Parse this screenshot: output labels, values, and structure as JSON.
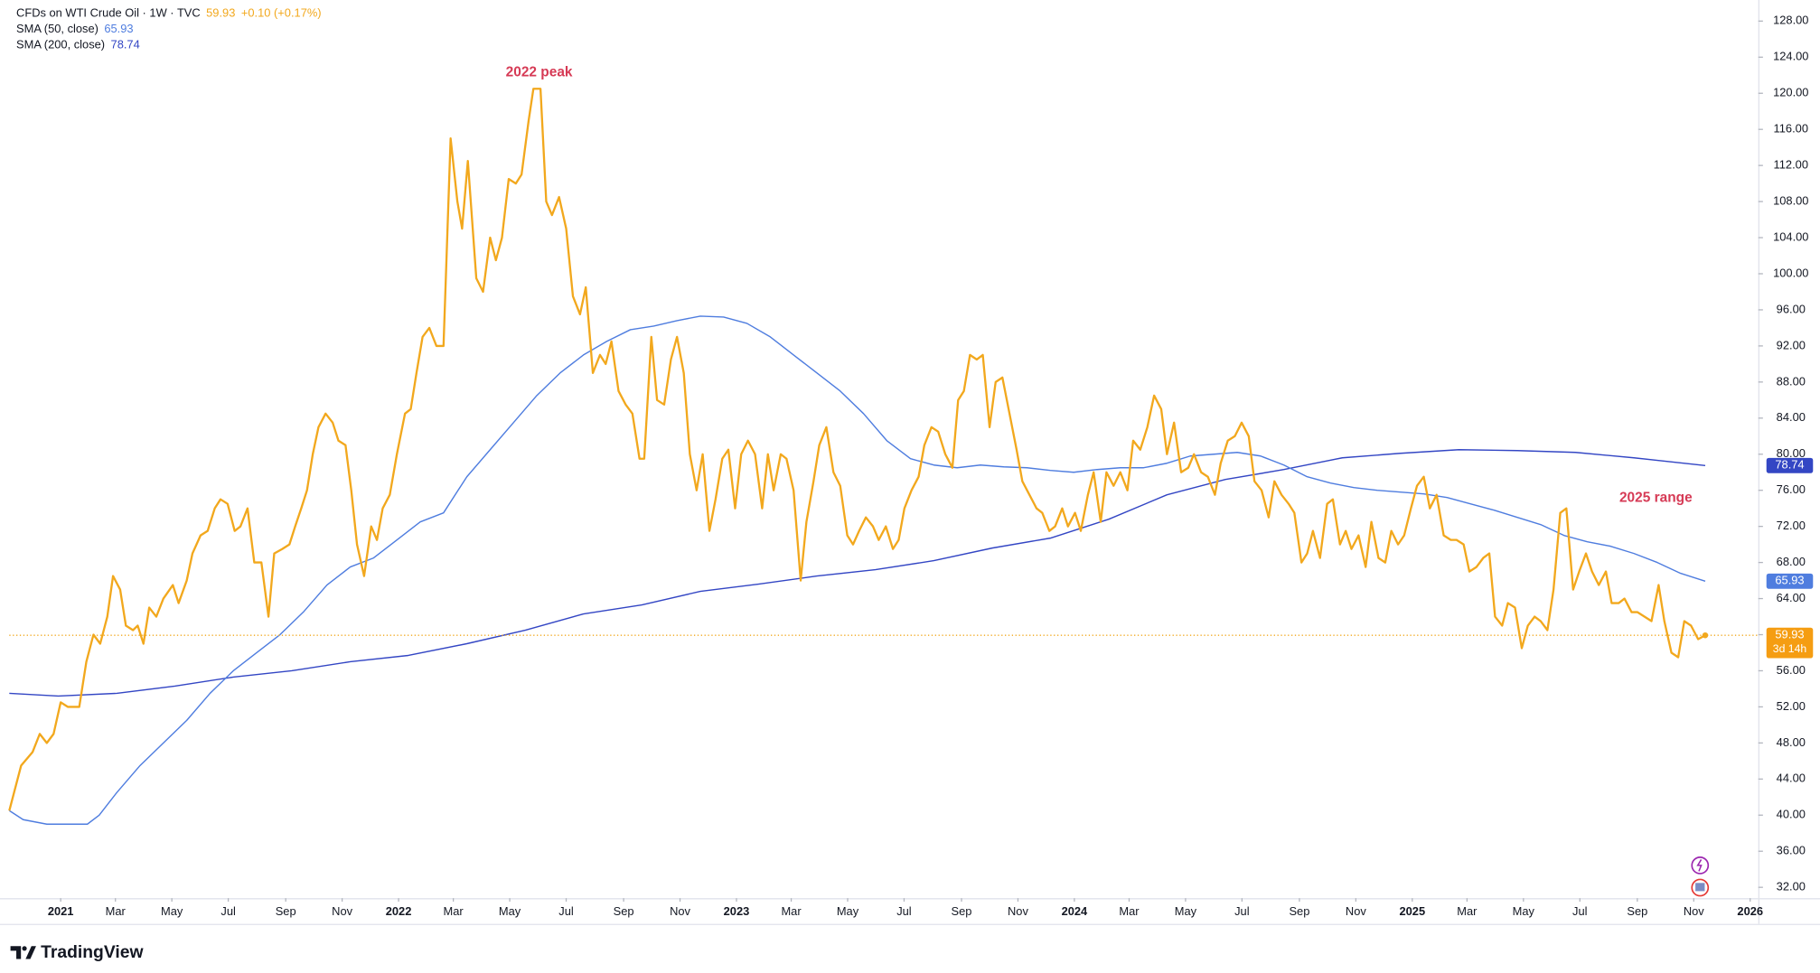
{
  "chart_data": {
    "type": "line",
    "change_label": "+0.10 (+0.17%)",
    "countdown": "3d 14h",
    "annotations": [
      "2022 peak",
      "2025 range"
    ],
    "grid": false,
    "xlim": [
      2020.848,
      2026.024
    ],
    "ylim": [
      30.8,
      129.3
    ],
    "xticks": [
      2021,
      {
        "value": 2021.162,
        "label": "Mar"
      },
      {
        "value": 2021.329,
        "label": "May"
      },
      {
        "value": 2021.496,
        "label": "Jul"
      },
      {
        "value": 2021.666,
        "label": "Sep"
      },
      {
        "value": 2021.833,
        "label": "Nov"
      },
      2022,
      {
        "value": 2022.162,
        "label": "Mar"
      },
      {
        "value": 2022.329,
        "label": "May"
      },
      {
        "value": 2022.496,
        "label": "Jul"
      },
      {
        "value": 2022.666,
        "label": "Sep"
      },
      {
        "value": 2022.833,
        "label": "Nov"
      },
      2023,
      {
        "value": 2023.162,
        "label": "Mar"
      },
      {
        "value": 2023.329,
        "label": "May"
      },
      {
        "value": 2023.496,
        "label": "Jul"
      },
      {
        "value": 2023.666,
        "label": "Sep"
      },
      {
        "value": 2023.833,
        "label": "Nov"
      },
      2024,
      {
        "value": 2024.162,
        "label": "Mar"
      },
      {
        "value": 2024.329,
        "label": "May"
      },
      {
        "value": 2024.496,
        "label": "Jul"
      },
      {
        "value": 2024.666,
        "label": "Sep"
      },
      {
        "value": 2024.833,
        "label": "Nov"
      },
      2025,
      {
        "value": 2025.162,
        "label": "Mar"
      },
      {
        "value": 2025.329,
        "label": "May"
      },
      {
        "value": 2025.496,
        "label": "Jul"
      },
      {
        "value": 2025.666,
        "label": "Sep"
      },
      {
        "value": 2025.833,
        "label": "Nov"
      },
      2026
    ],
    "yticks": [
      {
        "value": 32,
        "label": "32.00"
      },
      {
        "value": 36,
        "label": "36.00"
      },
      {
        "value": 40,
        "label": "40.00"
      },
      {
        "value": 44,
        "label": "44.00"
      },
      {
        "value": 48,
        "label": "48.00"
      },
      {
        "value": 52,
        "label": "52.00"
      },
      {
        "value": 56,
        "label": "56.00"
      },
      {
        "value": 60,
        "label": "60.00"
      },
      {
        "value": 64,
        "label": "64.00"
      },
      {
        "value": 68,
        "label": "68.00"
      },
      {
        "value": 72,
        "label": "72.00"
      },
      {
        "value": 76,
        "label": "76.00"
      },
      {
        "value": 80,
        "label": "80.00"
      },
      {
        "value": 84,
        "label": "84.00"
      },
      {
        "value": 88,
        "label": "88.00"
      },
      {
        "value": 92,
        "label": "92.00"
      },
      {
        "value": 96,
        "label": "96.00"
      },
      {
        "value": 100,
        "label": "100.00"
      },
      {
        "value": 104,
        "label": "104.00"
      },
      {
        "value": 108,
        "label": "108.00"
      },
      {
        "value": 112,
        "label": "112.00"
      },
      {
        "value": 116,
        "label": "116.00"
      },
      {
        "value": 120,
        "label": "120.00"
      },
      {
        "value": 124,
        "label": "124.00"
      },
      {
        "value": 128,
        "label": "128.00"
      }
    ],
    "series": [
      {
        "name": "CFDs on WTI Crude Oil · 1W · TVC",
        "color": "#f2a81d",
        "x": [
          2020.848,
          2020.883,
          2020.917,
          2020.938,
          2020.959,
          2020.979,
          2021.0,
          2021.021,
          2021.055,
          2021.076,
          2021.097,
          2021.117,
          2021.138,
          2021.155,
          2021.176,
          2021.193,
          2021.214,
          2021.228,
          2021.245,
          2021.262,
          2021.283,
          2021.304,
          2021.332,
          2021.349,
          2021.373,
          2021.39,
          2021.414,
          2021.435,
          2021.456,
          2021.473,
          2021.494,
          2021.515,
          2021.532,
          2021.553,
          2021.573,
          2021.594,
          2021.615,
          2021.632,
          2021.656,
          2021.677,
          2021.694,
          2021.712,
          2021.729,
          2021.746,
          2021.763,
          2021.784,
          2021.805,
          2021.822,
          2021.843,
          2021.86,
          2021.877,
          2021.898,
          2021.919,
          2021.936,
          2021.953,
          2021.974,
          2021.995,
          2022.019,
          2022.036,
          2022.053,
          2022.071,
          2022.091,
          2022.112,
          2022.133,
          2022.154,
          2022.174,
          2022.188,
          2022.205,
          2022.23,
          2022.25,
          2022.271,
          2022.288,
          2022.306,
          2022.326,
          2022.347,
          2022.364,
          2022.385,
          2022.399,
          2022.42,
          2022.437,
          2022.454,
          2022.475,
          2022.496,
          2022.516,
          2022.537,
          2022.554,
          2022.575,
          2022.596,
          2022.613,
          2022.63,
          2022.651,
          2022.672,
          2022.692,
          2022.713,
          2022.727,
          2022.748,
          2022.765,
          2022.786,
          2022.806,
          2022.824,
          2022.844,
          2022.862,
          2022.882,
          2022.9,
          2022.92,
          2022.938,
          2022.958,
          2022.976,
          2022.996,
          2023.014,
          2023.034,
          2023.055,
          2023.076,
          2023.093,
          2023.11,
          2023.131,
          2023.148,
          2023.169,
          2023.19,
          2023.207,
          2023.228,
          2023.245,
          2023.266,
          2023.287,
          2023.307,
          2023.328,
          2023.345,
          2023.363,
          2023.383,
          2023.404,
          2023.421,
          2023.442,
          2023.463,
          2023.48,
          2023.497,
          2023.518,
          2023.539,
          2023.556,
          2023.577,
          2023.597,
          2023.618,
          2023.639,
          2023.656,
          2023.673,
          2023.691,
          2023.711,
          2023.729,
          2023.749,
          2023.767,
          2023.787,
          2023.808,
          2023.829,
          2023.846,
          2023.867,
          2023.888,
          2023.905,
          2023.926,
          2023.943,
          2023.964,
          2023.981,
          2024.002,
          2024.019,
          2024.04,
          2024.057,
          2024.078,
          2024.095,
          2024.116,
          2024.136,
          2024.157,
          2024.174,
          2024.195,
          2024.216,
          2024.236,
          2024.257,
          2024.274,
          2024.295,
          2024.316,
          2024.337,
          2024.354,
          2024.375,
          2024.395,
          2024.416,
          2024.433,
          2024.454,
          2024.475,
          2024.495,
          2024.516,
          2024.533,
          2024.554,
          2024.575,
          2024.592,
          2024.613,
          2024.634,
          2024.651,
          2024.672,
          2024.689,
          2024.706,
          2024.727,
          2024.748,
          2024.765,
          2024.786,
          2024.803,
          2024.82,
          2024.841,
          2024.862,
          2024.879,
          2024.9,
          2024.92,
          2024.938,
          2024.958,
          2024.976,
          2024.996,
          2025.014,
          2025.034,
          2025.052,
          2025.072,
          2025.093,
          2025.114,
          2025.131,
          2025.152,
          2025.169,
          2025.19,
          2025.21,
          2025.228,
          2025.245,
          2025.266,
          2025.283,
          2025.304,
          2025.324,
          2025.342,
          2025.362,
          2025.38,
          2025.4,
          2025.418,
          2025.438,
          2025.456,
          2025.476,
          2025.494,
          2025.514,
          2025.532,
          2025.552,
          2025.573,
          2025.59,
          2025.611,
          2025.628,
          2025.649,
          2025.666,
          2025.687,
          2025.708,
          2025.729,
          2025.746,
          2025.767,
          2025.787,
          2025.805,
          2025.825,
          2025.846,
          2025.867
        ],
        "values": [
          40.5,
          45.5,
          47,
          49,
          48,
          49,
          52.5,
          52,
          52,
          57,
          60,
          59,
          62,
          66.5,
          65,
          61,
          60.5,
          61,
          59,
          63,
          62,
          64,
          65.5,
          63.5,
          66,
          69,
          71,
          71.5,
          74,
          75,
          74.5,
          71.5,
          72,
          74,
          68,
          68,
          62,
          69,
          69.5,
          70,
          72,
          74,
          76,
          80,
          83,
          84.5,
          83.5,
          81.5,
          81,
          76,
          70,
          66.5,
          72,
          70.5,
          74,
          75.5,
          80,
          84.5,
          85,
          89,
          93,
          94,
          92,
          92,
          115,
          108,
          105,
          112.5,
          99.5,
          98,
          104,
          101.5,
          104,
          110.5,
          110,
          111,
          117,
          120.5,
          120.5,
          108,
          106.5,
          108.5,
          105,
          97.5,
          95.5,
          98.5,
          89,
          91,
          90,
          92.5,
          87,
          85.5,
          84.5,
          79.5,
          79.5,
          93,
          86,
          85.5,
          90.5,
          93,
          89,
          80,
          76,
          80,
          71.5,
          75,
          79.5,
          80.5,
          74,
          80,
          81.5,
          80,
          74,
          80,
          76,
          80,
          79.5,
          76,
          66,
          72.5,
          77,
          81,
          83,
          78,
          76.5,
          71,
          70,
          71.5,
          73,
          72,
          70.5,
          72,
          69.5,
          70.5,
          74,
          76,
          77.5,
          81,
          83,
          82.5,
          80,
          78.5,
          86,
          87,
          91,
          90.5,
          91,
          83,
          88,
          88.5,
          84.5,
          80.5,
          77,
          75.5,
          74,
          73.5,
          71.5,
          72,
          74,
          72,
          73.5,
          71.5,
          75.5,
          78,
          72.5,
          78,
          76.5,
          78,
          76,
          81.5,
          80.5,
          83,
          86.5,
          85,
          80,
          83.5,
          78,
          78.5,
          80,
          78,
          77.5,
          75.5,
          79,
          81.5,
          82,
          83.5,
          82,
          77,
          76,
          73,
          77,
          75.5,
          74.5,
          73.5,
          68,
          69,
          71.5,
          68.5,
          74.5,
          75,
          70,
          71.5,
          69.5,
          71,
          67.5,
          72.5,
          68.5,
          68,
          71.5,
          70,
          71,
          74,
          76.5,
          77.5,
          74,
          75.5,
          71,
          70.5,
          70.5,
          70,
          67,
          67.5,
          68.5,
          69,
          62,
          61,
          63.5,
          63,
          58.5,
          61,
          62,
          61.5,
          60.5,
          65,
          73.5,
          74,
          65,
          67,
          69,
          67,
          65.5,
          67,
          63.5,
          63.5,
          64,
          62.5,
          62.5,
          62,
          61.5,
          65.5,
          61.5,
          58,
          57.5,
          61.5,
          61,
          59.5,
          59.93
        ]
      },
      {
        "name": "SMA (50, close)",
        "color": "#4f7ddf",
        "x": [
          2020.848,
          2020.889,
          2020.959,
          2021.028,
          2021.079,
          2021.114,
          2021.166,
          2021.235,
          2021.304,
          2021.373,
          2021.442,
          2021.511,
          2021.58,
          2021.649,
          2021.718,
          2021.788,
          2021.857,
          2021.926,
          2021.995,
          2022.064,
          2022.133,
          2022.202,
          2022.271,
          2022.34,
          2022.409,
          2022.478,
          2022.547,
          2022.616,
          2022.686,
          2022.755,
          2022.824,
          2022.893,
          2022.962,
          2023.031,
          2023.1,
          2023.169,
          2023.238,
          2023.307,
          2023.376,
          2023.445,
          2023.515,
          2023.584,
          2023.653,
          2023.722,
          2023.791,
          2023.86,
          2023.929,
          2023.998,
          2024.067,
          2024.136,
          2024.205,
          2024.274,
          2024.343,
          2024.413,
          2024.482,
          2024.551,
          2024.62,
          2024.689,
          2024.758,
          2024.827,
          2024.896,
          2024.965,
          2025.034,
          2025.103,
          2025.172,
          2025.242,
          2025.311,
          2025.38,
          2025.449,
          2025.518,
          2025.587,
          2025.656,
          2025.725,
          2025.794,
          2025.867
        ],
        "values": [
          40.5,
          39.5,
          39,
          39,
          39,
          40,
          42.5,
          45.5,
          48,
          50.5,
          53.5,
          56,
          58,
          60,
          62.5,
          65.5,
          67.5,
          68.5,
          70.5,
          72.5,
          73.5,
          77.5,
          80.5,
          83.5,
          86.5,
          89,
          91,
          92.5,
          93.8,
          94.2,
          94.8,
          95.3,
          95.2,
          94.5,
          93,
          91,
          89,
          87,
          84.5,
          81.5,
          79.5,
          78.8,
          78.5,
          78.8,
          78.6,
          78.5,
          78.2,
          78,
          78.3,
          78.5,
          78.5,
          79,
          79.8,
          80,
          80.2,
          79.8,
          78.8,
          77.5,
          76.8,
          76.3,
          76,
          75.8,
          75.6,
          75.2,
          74.5,
          73.8,
          73,
          72.2,
          71,
          70.3,
          69.8,
          69,
          68,
          66.8,
          65.93
        ]
      },
      {
        "name": "SMA (200, close)",
        "color": "#3346c4",
        "x": [
          2020.848,
          2020.993,
          2021.166,
          2021.338,
          2021.511,
          2021.684,
          2021.857,
          2022.029,
          2022.202,
          2022.375,
          2022.547,
          2022.72,
          2022.893,
          2023.065,
          2023.238,
          2023.411,
          2023.584,
          2023.757,
          2023.929,
          2024.102,
          2024.274,
          2024.447,
          2024.62,
          2024.793,
          2024.965,
          2025.138,
          2025.311,
          2025.483,
          2025.656,
          2025.867
        ],
        "values": [
          53.5,
          53.2,
          53.5,
          54.3,
          55.3,
          56,
          57,
          57.7,
          59,
          60.5,
          62.3,
          63.3,
          64.8,
          65.6,
          66.5,
          67.2,
          68.2,
          69.6,
          70.7,
          72.8,
          75.5,
          77.2,
          78.3,
          79.6,
          80.1,
          80.5,
          80.4,
          80.2,
          79.6,
          78.74
        ]
      }
    ]
  },
  "branding": "TradingView"
}
